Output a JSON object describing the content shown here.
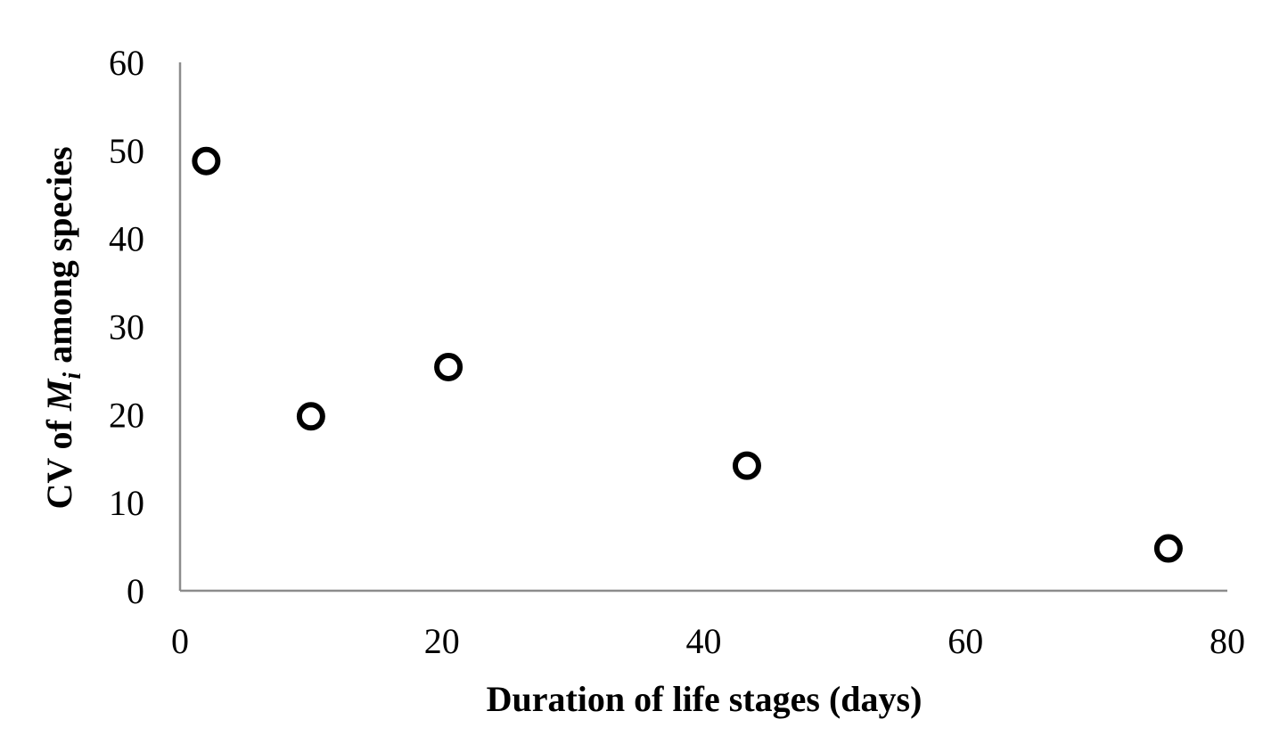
{
  "chart_data": {
    "type": "scatter",
    "title": "",
    "xlabel": "Duration of life stages (days)",
    "ylabel": {
      "prefix": "CV of ",
      "symbol": "M",
      "subscript": "i",
      "suffix": " among species"
    },
    "xlim": [
      0,
      80
    ],
    "ylim": [
      0,
      60
    ],
    "x_ticks": [
      0,
      20,
      40,
      60,
      80
    ],
    "y_ticks": [
      0,
      10,
      20,
      30,
      40,
      50,
      60
    ],
    "grid": false,
    "legend": "none",
    "marker": "open-circle",
    "series": [
      {
        "points": [
          {
            "x": 2,
            "y": 48.8
          },
          {
            "x": 10,
            "y": 19.8
          },
          {
            "x": 20.5,
            "y": 25.4
          },
          {
            "x": 43.3,
            "y": 14.2
          },
          {
            "x": 75.5,
            "y": 4.8
          }
        ]
      }
    ],
    "colors": {
      "axis": "#8c8c8c",
      "marker_stroke": "#000000",
      "marker_fill": "#ffffff",
      "text": "#000000"
    }
  }
}
